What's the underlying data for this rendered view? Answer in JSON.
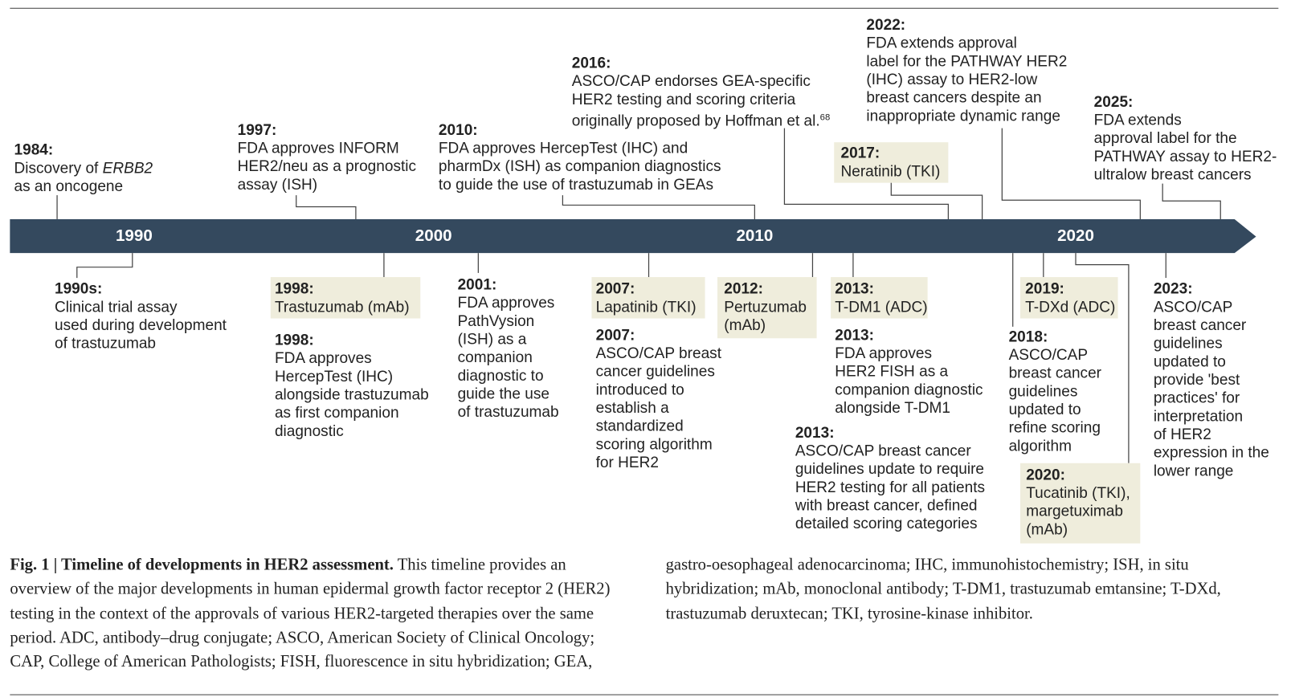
{
  "axis": [
    "1990",
    "2000",
    "2010",
    "2020"
  ],
  "events": [
    {
      "year": "1984:",
      "lines": [
        "Discovery of",
        "as an oncogene"
      ],
      "em": "ERBB2"
    },
    {
      "year": "1997:",
      "lines": [
        "FDA approves INFORM",
        "HER2/neu as a prognostic",
        "assay (ISH)"
      ]
    },
    {
      "year": "2010:",
      "lines": [
        "FDA approves HercepTest (IHC) and",
        "pharmDx (ISH) as companion diagnostics",
        "to guide the use of trastuzumab in GEAs"
      ]
    },
    {
      "year": "2016:",
      "lines": [
        "ASCO/CAP endorses GEA-specific",
        "HER2 testing and scoring criteria",
        "originally proposed by Hoffman et al."
      ],
      "sup": "68"
    },
    {
      "year": "2017:",
      "lines": [
        "Neratinib (TKI)"
      ]
    },
    {
      "year": "2022:",
      "lines": [
        "FDA extends approval",
        "label for the PATHWAY HER2",
        "(IHC) assay to HER2-low",
        "breast cancers despite an",
        "inappropriate dynamic range"
      ]
    },
    {
      "year": "2025:",
      "lines": [
        "FDA extends",
        "approval label for the",
        "PATHWAY assay to HER2-",
        "ultralow breast cancers"
      ]
    },
    {
      "year": "1990s:",
      "lines": [
        "Clinical trial assay",
        "used during development",
        "of trastuzumab"
      ]
    },
    {
      "year": "1998:",
      "lines": [
        "Trastuzumab (mAb)"
      ]
    },
    {
      "year": "1998:",
      "lines": [
        "FDA approves",
        "HercepTest (IHC)",
        "alongside trastuzumab",
        "as first companion",
        "diagnostic"
      ]
    },
    {
      "year": "2001:",
      "lines": [
        "FDA approves",
        "PathVysion",
        "(ISH) as a",
        "companion",
        "diagnostic to",
        "guide the use",
        "of trastuzumab"
      ]
    },
    {
      "year": "2007:",
      "lines": [
        "Lapatinib (TKI)"
      ]
    },
    {
      "year": "2007:",
      "lines": [
        "ASCO/CAP breast",
        "cancer guidelines",
        "introduced to",
        "establish a",
        "standardized",
        "scoring algorithm",
        "for HER2"
      ]
    },
    {
      "year": "2012:",
      "lines": [
        "Pertuzumab",
        "(mAb)"
      ]
    },
    {
      "year": "2013:",
      "lines": [
        "T-DM1 (ADC)"
      ]
    },
    {
      "year": "2013:",
      "lines": [
        "FDA approves",
        "HER2 FISH as a",
        "companion diagnostic",
        "alongside T-DM1"
      ]
    },
    {
      "year": "2013:",
      "lines": [
        "ASCO/CAP breast cancer",
        "guidelines update to require",
        "HER2 testing for all patients",
        "with breast cancer, defined",
        "detailed scoring categories"
      ]
    },
    {
      "year": "2019:",
      "lines": [
        "T-DXd (ADC)"
      ]
    },
    {
      "year": "2018:",
      "lines": [
        "ASCO/CAP",
        "breast cancer",
        "guidelines",
        "updated to",
        "refine scoring",
        "algorithm"
      ]
    },
    {
      "year": "2020:",
      "lines": [
        "Tucatinib (TKI),",
        "margetuximab",
        "(mAb)"
      ]
    },
    {
      "year": "2023:",
      "lines": [
        "ASCO/CAP",
        "breast cancer",
        "guidelines",
        "updated to",
        "provide 'best",
        "practices' for",
        "interpretation",
        "of HER2",
        "expression in the",
        "lower range"
      ]
    }
  ],
  "caption": {
    "title": "Fig. 1 | Timeline of developments in HER2 assessment.",
    "body": "This timeline provides an overview of the major developments in human epidermal growth factor receptor 2 (HER2) testing in the context of the approvals of various HER2-targeted therapies over the same period. ADC, antibody–drug conjugate; ASCO, American Society of Clinical Oncology; CAP, College of American Pathologists; FISH, fluorescence in situ hybridization; GEA, gastro-oesophageal adenocarcinoma; IHC, immunohistochemistry; ISH, in situ hybridization; mAb, monoclonal antibody; T-DM1, trastuzumab emtansine; T-DXd, trastuzumab deruxtecan; TKI, tyrosine-kinase inhibitor."
  }
}
